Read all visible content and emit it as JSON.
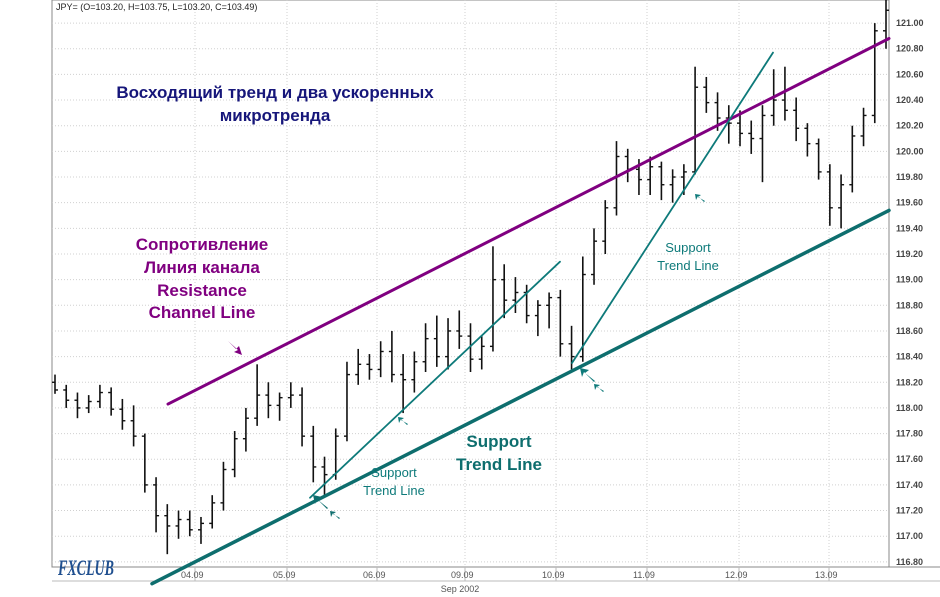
{
  "header": {
    "ohlc": "JPY= (O=103.20, H=103.75, L=103.20, C=103.49)"
  },
  "chart_data": {
    "type": "ohlc",
    "y_range": [
      116.76,
      121.18
    ],
    "y_ticks": [
      "121.00",
      "120.80",
      "120.60",
      "120.40",
      "120.20",
      "120.00",
      "119.80",
      "119.60",
      "119.40",
      "119.20",
      "119.00",
      "118.80",
      "118.60",
      "118.40",
      "118.20",
      "118.00",
      "117.80",
      "117.60",
      "117.40",
      "117.20",
      "117.00",
      "116.80"
    ],
    "x_ticks": [
      "04.09",
      "05.09",
      "06.09",
      "09.09",
      "10.09",
      "11.09",
      "12.09",
      "13.09"
    ],
    "x_month_label": "Sep 2002",
    "annotations": {
      "title_ru_line1": "Восходящий тренд и два ускоренных",
      "title_ru_line2": "микротренда",
      "resistance_1": "Сопротивление",
      "resistance_2": "Линия канала",
      "resistance_3": "Resistance",
      "resistance_4": "Channel Line",
      "support_main_1": "Support",
      "support_main_2": "Trend Line",
      "support_micro1_1": "Support",
      "support_micro1_2": "Trend Line",
      "support_micro2_1": "Support",
      "support_micro2_2": "Trend Line"
    },
    "trend_lines": [
      {
        "name": "resistance-channel-line",
        "color": "#800080",
        "from": [
          0,
          118.03
        ],
        "to": [
          80,
          120.88
        ]
      },
      {
        "name": "support-trend-line",
        "color": "#0e6e6e",
        "from": [
          0,
          116.63
        ],
        "to": [
          80,
          119.54
        ]
      },
      {
        "name": "support-micro-trend-1",
        "color": "#0e7a7a",
        "from": [
          0,
          117.3
        ],
        "to": [
          34,
          119.14
        ]
      },
      {
        "name": "support-micro-trend-2",
        "color": "#0e7a7a",
        "from": [
          0,
          118.35
        ],
        "to": [
          28,
          120.77
        ]
      }
    ],
    "series": [
      {
        "values": [
          [
            118.2,
            118.26,
            118.11,
            118.14
          ],
          [
            118.14,
            118.18,
            118.0,
            118.06
          ],
          [
            118.06,
            118.12,
            117.92,
            118.0
          ],
          [
            118.0,
            118.1,
            117.96,
            118.05
          ],
          [
            118.05,
            118.18,
            118.0,
            118.12
          ],
          [
            118.12,
            118.16,
            117.94,
            117.99
          ],
          [
            117.99,
            118.07,
            117.83,
            117.9
          ],
          [
            117.9,
            118.02,
            117.7,
            117.78
          ],
          [
            117.78,
            117.8,
            117.34,
            117.4
          ],
          [
            117.4,
            117.46,
            117.03,
            117.16
          ],
          [
            117.16,
            117.25,
            116.86,
            117.08
          ],
          [
            117.08,
            117.2,
            116.98,
            117.13
          ],
          [
            117.13,
            117.2,
            117.0,
            117.05
          ],
          [
            117.05,
            117.15,
            116.94,
            117.1
          ],
          [
            117.1,
            117.32,
            117.06,
            117.26
          ],
          [
            117.26,
            117.58,
            117.2,
            117.52
          ],
          [
            117.52,
            117.82,
            117.46,
            117.76
          ],
          [
            117.76,
            118.0,
            117.66,
            117.92
          ],
          [
            117.92,
            118.34,
            117.86,
            118.1
          ],
          [
            118.1,
            118.2,
            117.92,
            118.02
          ],
          [
            118.02,
            118.12,
            117.9,
            118.08
          ],
          [
            118.08,
            118.2,
            118.0,
            118.1
          ],
          [
            118.1,
            118.16,
            117.7,
            117.78
          ],
          [
            117.78,
            117.86,
            117.42,
            117.54
          ],
          [
            117.54,
            117.62,
            117.32,
            117.48
          ],
          [
            117.48,
            117.84,
            117.44,
            117.78
          ],
          [
            117.78,
            118.36,
            117.74,
            118.26
          ],
          [
            118.26,
            118.46,
            118.18,
            118.34
          ],
          [
            118.34,
            118.42,
            118.22,
            118.3
          ],
          [
            118.3,
            118.52,
            118.24,
            118.44
          ],
          [
            118.44,
            118.6,
            118.2,
            118.26
          ],
          [
            118.26,
            118.42,
            117.96,
            118.22
          ],
          [
            118.22,
            118.44,
            118.12,
            118.36
          ],
          [
            118.36,
            118.66,
            118.28,
            118.54
          ],
          [
            118.54,
            118.72,
            118.32,
            118.4
          ],
          [
            118.4,
            118.7,
            118.3,
            118.6
          ],
          [
            118.6,
            118.76,
            118.46,
            118.56
          ],
          [
            118.56,
            118.66,
            118.28,
            118.38
          ],
          [
            118.38,
            118.56,
            118.3,
            118.48
          ],
          [
            118.48,
            119.26,
            118.44,
            119.0
          ],
          [
            119.0,
            119.12,
            118.7,
            118.84
          ],
          [
            118.84,
            119.02,
            118.74,
            118.9
          ],
          [
            118.9,
            118.96,
            118.66,
            118.72
          ],
          [
            118.72,
            118.84,
            118.56,
            118.8
          ],
          [
            118.8,
            118.9,
            118.62,
            118.86
          ],
          [
            118.86,
            118.92,
            118.4,
            118.5
          ],
          [
            118.5,
            118.64,
            118.3,
            118.4
          ],
          [
            118.4,
            119.18,
            118.36,
            119.04
          ],
          [
            119.04,
            119.4,
            118.96,
            119.3
          ],
          [
            119.3,
            119.62,
            119.2,
            119.56
          ],
          [
            119.56,
            120.08,
            119.5,
            119.96
          ],
          [
            119.96,
            120.02,
            119.76,
            119.86
          ],
          [
            119.86,
            119.94,
            119.66,
            119.78
          ],
          [
            119.78,
            119.96,
            119.66,
            119.88
          ],
          [
            119.88,
            119.92,
            119.62,
            119.74
          ],
          [
            119.74,
            119.86,
            119.6,
            119.8
          ],
          [
            119.8,
            119.9,
            119.66,
            119.84
          ],
          [
            119.84,
            120.66,
            119.82,
            120.5
          ],
          [
            120.5,
            120.58,
            120.3,
            120.38
          ],
          [
            120.38,
            120.46,
            120.16,
            120.26
          ],
          [
            120.26,
            120.36,
            120.06,
            120.22
          ],
          [
            120.22,
            120.32,
            120.04,
            120.14
          ],
          [
            120.14,
            120.24,
            119.98,
            120.1
          ],
          [
            120.1,
            120.36,
            119.76,
            120.28
          ],
          [
            120.28,
            120.64,
            120.2,
            120.4
          ],
          [
            120.4,
            120.66,
            120.24,
            120.32
          ],
          [
            120.32,
            120.42,
            120.08,
            120.18
          ],
          [
            120.18,
            120.22,
            119.96,
            120.06
          ],
          [
            120.06,
            120.1,
            119.78,
            119.84
          ],
          [
            119.84,
            119.9,
            119.42,
            119.56
          ],
          [
            119.56,
            119.82,
            119.4,
            119.74
          ],
          [
            119.74,
            120.2,
            119.68,
            120.12
          ],
          [
            120.12,
            120.34,
            120.04,
            120.28
          ],
          [
            120.28,
            121.0,
            120.22,
            120.94
          ],
          [
            120.94,
            121.18,
            120.8,
            121.1
          ]
        ]
      }
    ]
  },
  "branding": {
    "logo_text": "FXCLUB"
  }
}
